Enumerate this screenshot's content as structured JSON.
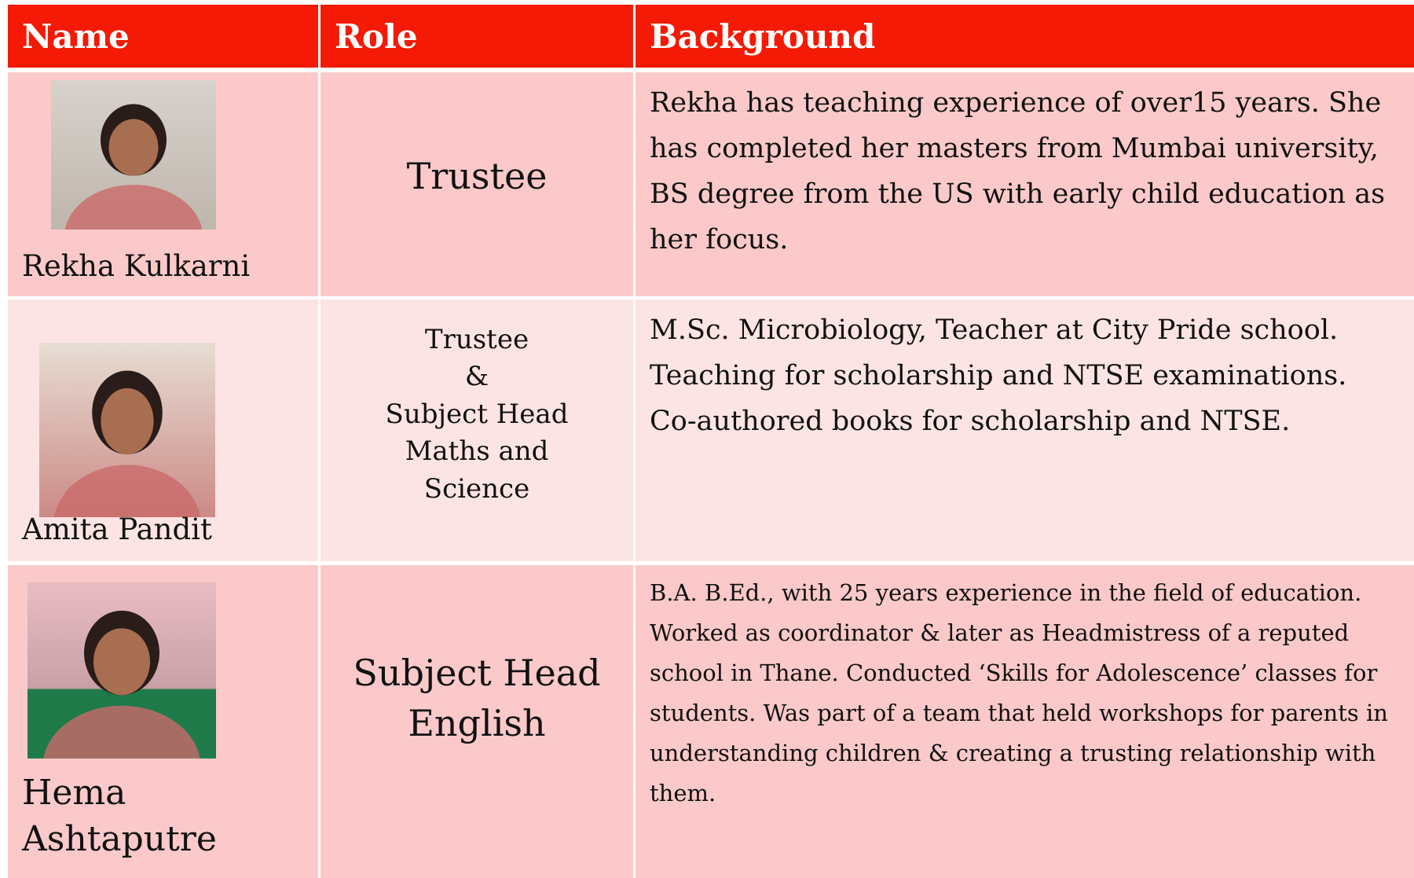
{
  "header": {
    "name": "Name",
    "role": "Role",
    "background": "Background"
  },
  "rows": [
    {
      "name": [
        "Rekha Kulkarni"
      ],
      "role": [
        "Trustee"
      ],
      "background": "Rekha has teaching experience of over15 years. She has completed her masters from Mumbai university, BS degree from the US with early child education as her focus."
    },
    {
      "name": [
        "Amita Pandit"
      ],
      "role": [
        "Trustee",
        "&",
        "Subject Head",
        "Maths and",
        "Science"
      ],
      "background": "M.Sc. Microbiology, Teacher at City Pride school. Teaching for scholarship and NTSE examinations. Co-authored books for scholarship and NTSE."
    },
    {
      "name": [
        "Hema",
        "Ashtaputre"
      ],
      "role": [
        "Subject Head",
        "English"
      ],
      "background": "B.A. B.Ed., with 25 years experience in the field of education. Worked as coordinator & later as Headmistress of a reputed school in Thane. Conducted ‘Skills for Adolescence’ classes for students. Was part of a team that held workshops for parents in understanding children & creating a trusting relationship with them."
    }
  ]
}
